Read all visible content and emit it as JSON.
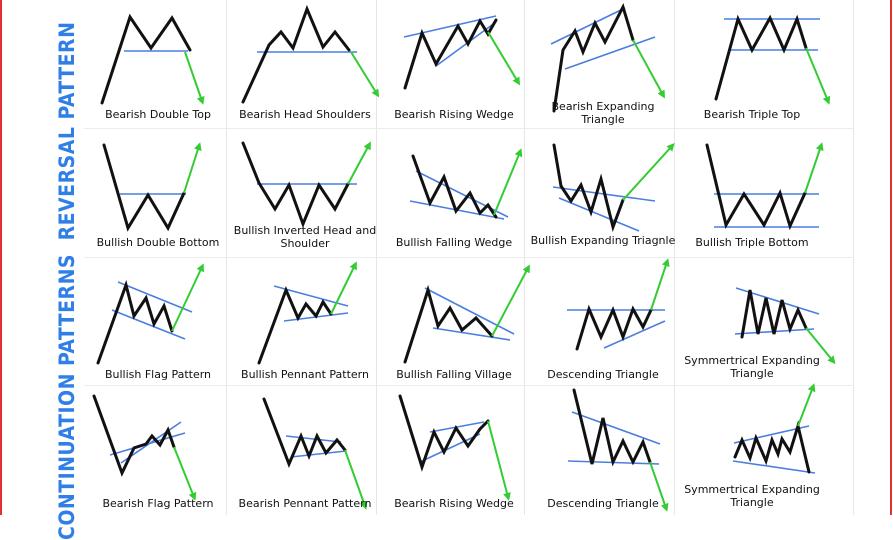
{
  "sections": {
    "reversal": "REVERSAL PATTERN",
    "continuation": "CONTINUATION PATTERNS"
  },
  "colors": {
    "price": "#111111",
    "trendline": "#4a7fe0",
    "breakout": "#33cc33",
    "label": "#2f7fe6",
    "frame": "#e03030"
  },
  "patterns": [
    {
      "name": "Bearish Double Top",
      "group": "reversal"
    },
    {
      "name": "Bearish Head Shoulders",
      "group": "reversal"
    },
    {
      "name": "Bearish Rising Wedge",
      "group": "reversal"
    },
    {
      "name": "Bearish Expanding Triangle",
      "group": "reversal"
    },
    {
      "name": "Bearish Triple Top",
      "group": "reversal"
    },
    {
      "name": "Bullish Double Bottom",
      "group": "reversal"
    },
    {
      "name": "Bullish Inverted Head and Shoulder",
      "group": "reversal"
    },
    {
      "name": "Bullish Falling Wedge",
      "group": "reversal"
    },
    {
      "name": "Bullish Expanding Triagnle",
      "group": "reversal"
    },
    {
      "name": "Bullish Triple Bottom",
      "group": "reversal"
    },
    {
      "name": "Bullish Flag Pattern",
      "group": "continuation"
    },
    {
      "name": "Bullish Pennant Pattern",
      "group": "continuation"
    },
    {
      "name": "Bullish Falling Village",
      "group": "continuation"
    },
    {
      "name": "Descending Triangle",
      "group": "continuation"
    },
    {
      "name": "Symmertrical Expanding Triangle",
      "group": "continuation"
    },
    {
      "name": "Bearish Flag Pattern",
      "group": "continuation"
    },
    {
      "name": "Bearish Pennant Pattern",
      "group": "continuation"
    },
    {
      "name": "Bearish Rising Wedge",
      "group": "continuation"
    },
    {
      "name": "Descending Triangle",
      "group": "continuation"
    },
    {
      "name": "Symmertrical Expanding Triangle",
      "group": "continuation"
    }
  ]
}
